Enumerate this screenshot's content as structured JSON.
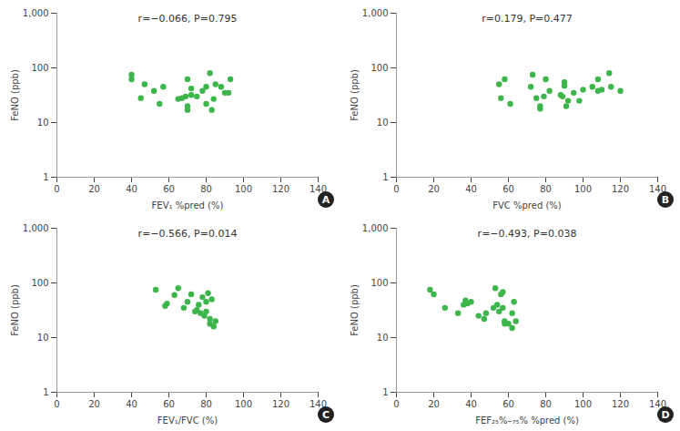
{
  "chart_data": [
    {
      "type": "scatter",
      "panel": "A",
      "annotation": "r=−0.066, P=0.795",
      "x_label": "FEV₁ %pred (%)",
      "y_label": "FeNO (ppb)",
      "x": [
        40,
        40,
        45,
        47,
        52,
        55,
        57,
        65,
        67,
        69,
        70,
        70,
        70,
        72,
        72,
        75,
        78,
        80,
        80,
        82,
        83,
        84,
        85,
        88,
        90,
        92,
        93
      ],
      "y": [
        75,
        62,
        28,
        50,
        38,
        22,
        45,
        27,
        28,
        30,
        62,
        20,
        17,
        32,
        42,
        30,
        38,
        45,
        22,
        80,
        17,
        27,
        50,
        45,
        35,
        35,
        62
      ],
      "xlim": [
        0,
        140
      ],
      "xticks": [
        0,
        20,
        40,
        60,
        80,
        100,
        120,
        140
      ],
      "ylim": [
        1,
        1000
      ],
      "yticks": [
        1,
        10,
        100,
        {
          "value": 1000,
          "label": "1,000"
        }
      ],
      "log": "y",
      "grid": false,
      "color": "#3cb54a",
      "marker": "circle"
    },
    {
      "type": "scatter",
      "panel": "B",
      "annotation": "r=0.179, P=0.477",
      "x_label": "FVC %pred (%)",
      "y_label": "FeNO (ppb)",
      "x": [
        55,
        56,
        58,
        61,
        72,
        73,
        75,
        77,
        77,
        79,
        80,
        82,
        88,
        89,
        90,
        90,
        91,
        92,
        95,
        98,
        100,
        105,
        108,
        108,
        110,
        114,
        115,
        120
      ],
      "y": [
        50,
        28,
        62,
        22,
        45,
        75,
        28,
        20,
        18,
        30,
        62,
        38,
        32,
        30,
        55,
        47,
        20,
        25,
        35,
        25,
        40,
        45,
        62,
        38,
        40,
        80,
        45,
        38
      ],
      "xlim": [
        0,
        140
      ],
      "xticks": [
        0,
        20,
        40,
        60,
        80,
        100,
        120,
        140
      ],
      "ylim": [
        1,
        1000
      ],
      "yticks": [
        1,
        10,
        100,
        {
          "value": 1000,
          "label": "1,000"
        }
      ],
      "log": "y",
      "grid": false,
      "color": "#3cb54a",
      "marker": "circle"
    },
    {
      "type": "scatter",
      "panel": "C",
      "annotation": "r=−0.566, P=0.014",
      "x_label": "FEV₁/FVC (%)",
      "y_label": "FeNO (ppb)",
      "x": [
        53,
        58,
        59,
        63,
        65,
        68,
        70,
        72,
        74,
        75,
        76,
        77,
        78,
        79,
        80,
        80,
        81,
        82,
        82,
        83,
        84,
        85
      ],
      "y": [
        75,
        38,
        42,
        60,
        80,
        35,
        45,
        62,
        30,
        32,
        40,
        28,
        55,
        25,
        30,
        45,
        65,
        18,
        22,
        50,
        16,
        20
      ],
      "xlim": [
        0,
        140
      ],
      "xticks": [
        0,
        20,
        40,
        60,
        80,
        100,
        120,
        140
      ],
      "ylim": [
        1,
        1000
      ],
      "yticks": [
        1,
        10,
        100,
        {
          "value": 1000,
          "label": "1,000"
        }
      ],
      "log": "y",
      "grid": false,
      "color": "#3cb54a",
      "marker": "circle"
    },
    {
      "type": "scatter",
      "panel": "D",
      "annotation": "r=−0.493, P=0.038",
      "x_label": "FEF₂₅%–₇₅% %pred (%)",
      "y_label": "FeNO (ppb)",
      "x": [
        18,
        20,
        26,
        33,
        36,
        37,
        38,
        40,
        44,
        47,
        48,
        52,
        53,
        54,
        56,
        57,
        57,
        58,
        58,
        60,
        62,
        63,
        64,
        62,
        55
      ],
      "y": [
        75,
        62,
        35,
        28,
        40,
        48,
        42,
        45,
        25,
        22,
        28,
        35,
        80,
        40,
        62,
        68,
        35,
        18,
        20,
        18,
        28,
        45,
        20,
        15,
        30
      ],
      "xlim": [
        0,
        140
      ],
      "xticks": [
        0,
        20,
        40,
        60,
        80,
        100,
        120,
        140
      ],
      "ylim": [
        1,
        1000
      ],
      "yticks": [
        1,
        10,
        100,
        {
          "value": 1000,
          "label": "1,000"
        }
      ],
      "log": "y",
      "grid": false,
      "color": "#3cb54a",
      "marker": "circle"
    }
  ]
}
